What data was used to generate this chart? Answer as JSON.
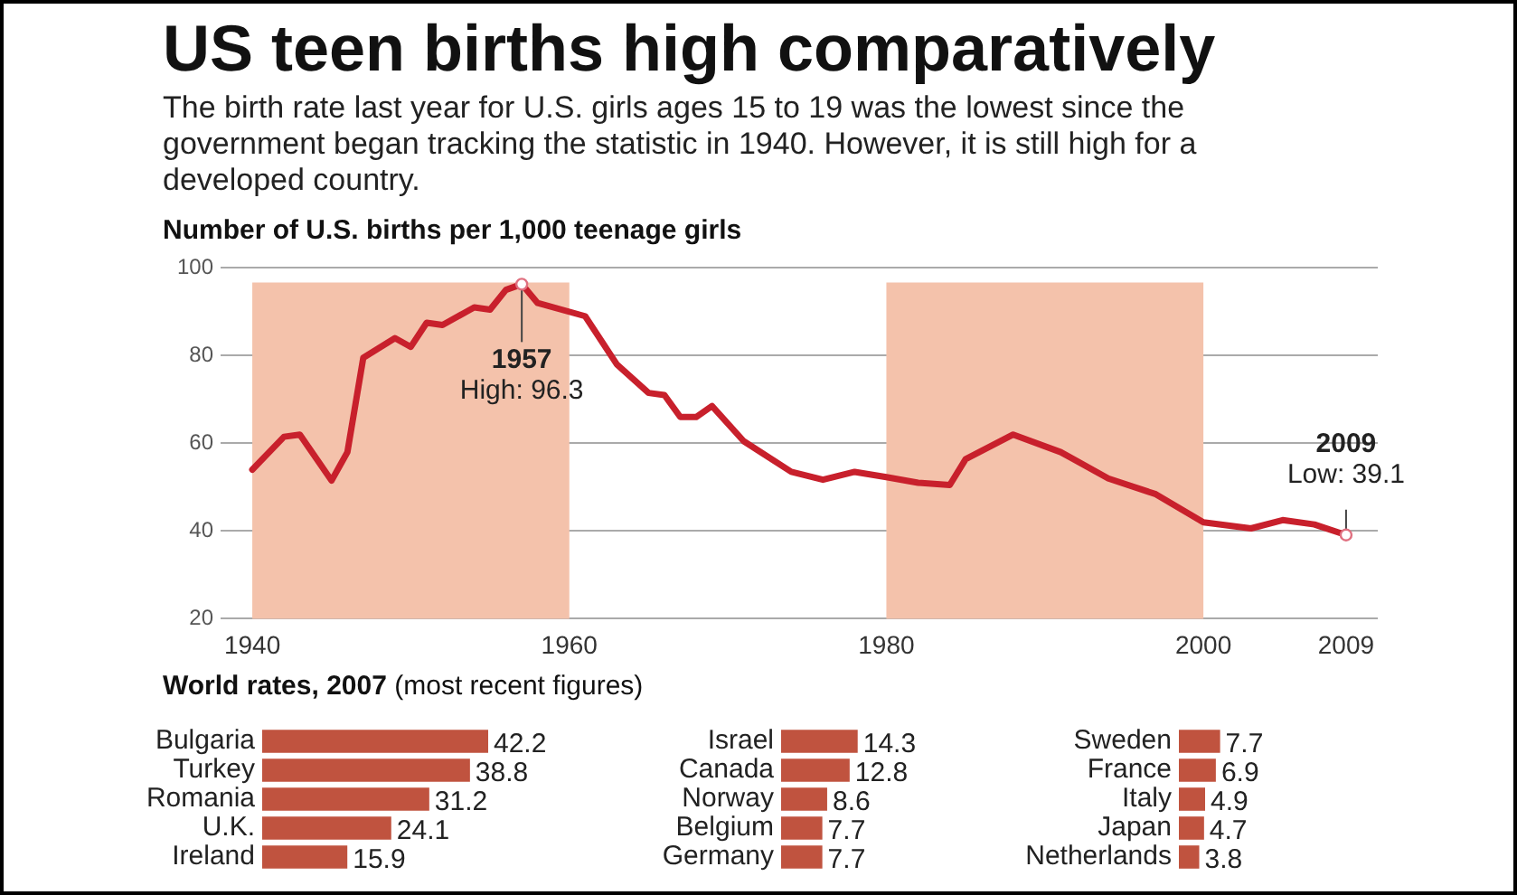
{
  "chart_data": [
    {
      "type": "line",
      "title": "US teen births high comparatively",
      "subtitle": "The birth rate last year for U.S. girls ages 15 to 19 was the lowest since the government began tracking the statistic in 1940. However, it is still high for a developed country.",
      "ylabel": "Number of U.S. births per 1,000 teenage girls",
      "x": [
        1940,
        1942,
        1943,
        1945,
        1946,
        1947,
        1949,
        1950,
        1951,
        1952,
        1954,
        1955,
        1956,
        1957,
        1958,
        1961,
        1963,
        1965,
        1966,
        1967,
        1968,
        1969,
        1971,
        1974,
        1976,
        1978,
        1980,
        1982,
        1984,
        1985,
        1988,
        1991,
        1994,
        1997,
        2000,
        2003,
        2005,
        2007,
        2009
      ],
      "series": [
        {
          "color": "#c8202c",
          "values": [
            54,
            61.5,
            62,
            51.5,
            58,
            79.5,
            84,
            82,
            87.5,
            87,
            91,
            90.5,
            95,
            96.3,
            92,
            89,
            78,
            71.5,
            71,
            66,
            66,
            68.5,
            60.5,
            53.5,
            51.7,
            53.5,
            52.3,
            51,
            50.5,
            56.4,
            62,
            58,
            52,
            48.4,
            42,
            40.6,
            42.5,
            41.5,
            39.1
          ]
        }
      ],
      "xlim": [
        1938,
        2011
      ],
      "xticks": [
        1940,
        1960,
        1980,
        2000,
        2009
      ],
      "ylim": [
        20,
        100
      ],
      "yticks": [
        20,
        40,
        60,
        80,
        100
      ],
      "grid": "y",
      "marker": "none",
      "line_style": "solid",
      "bands": [
        {
          "axis": "x",
          "from": 1940,
          "to": 1960,
          "color": "#f4c2ab"
        },
        {
          "axis": "x",
          "from": 1980,
          "to": 2000,
          "color": "#f4c2ab"
        }
      ],
      "annotations": [
        {
          "text": "1957\nHigh: 96.3",
          "x": 1957,
          "y": 96.3
        },
        {
          "text": "2009\nLow: 39.1",
          "x": 2009,
          "y": 39.1
        }
      ]
    },
    {
      "type": "bar",
      "orientation": "horizontal",
      "title": "World rates, 2007 (most recent figures)",
      "categories": [
        "Bulgaria",
        "Turkey",
        "Romania",
        "U.K.",
        "Ireland"
      ],
      "values": [
        42.2,
        38.8,
        31.2,
        24.1,
        15.9
      ],
      "color": "#c0533f",
      "data_labels": true,
      "tick_labels": "y"
    },
    {
      "type": "bar",
      "orientation": "horizontal",
      "categories": [
        "Israel",
        "Canada",
        "Norway",
        "Belgium",
        "Germany"
      ],
      "values": [
        14.3,
        12.8,
        8.6,
        7.7,
        7.7
      ],
      "color": "#c0533f",
      "data_labels": true,
      "tick_labels": "y"
    },
    {
      "type": "bar",
      "orientation": "horizontal",
      "categories": [
        "Sweden",
        "France",
        "Italy",
        "Japan",
        "Netherlands"
      ],
      "values": [
        7.7,
        6.9,
        4.9,
        4.7,
        3.8
      ],
      "color": "#c0533f",
      "data_labels": true,
      "tick_labels": "y"
    }
  ]
}
